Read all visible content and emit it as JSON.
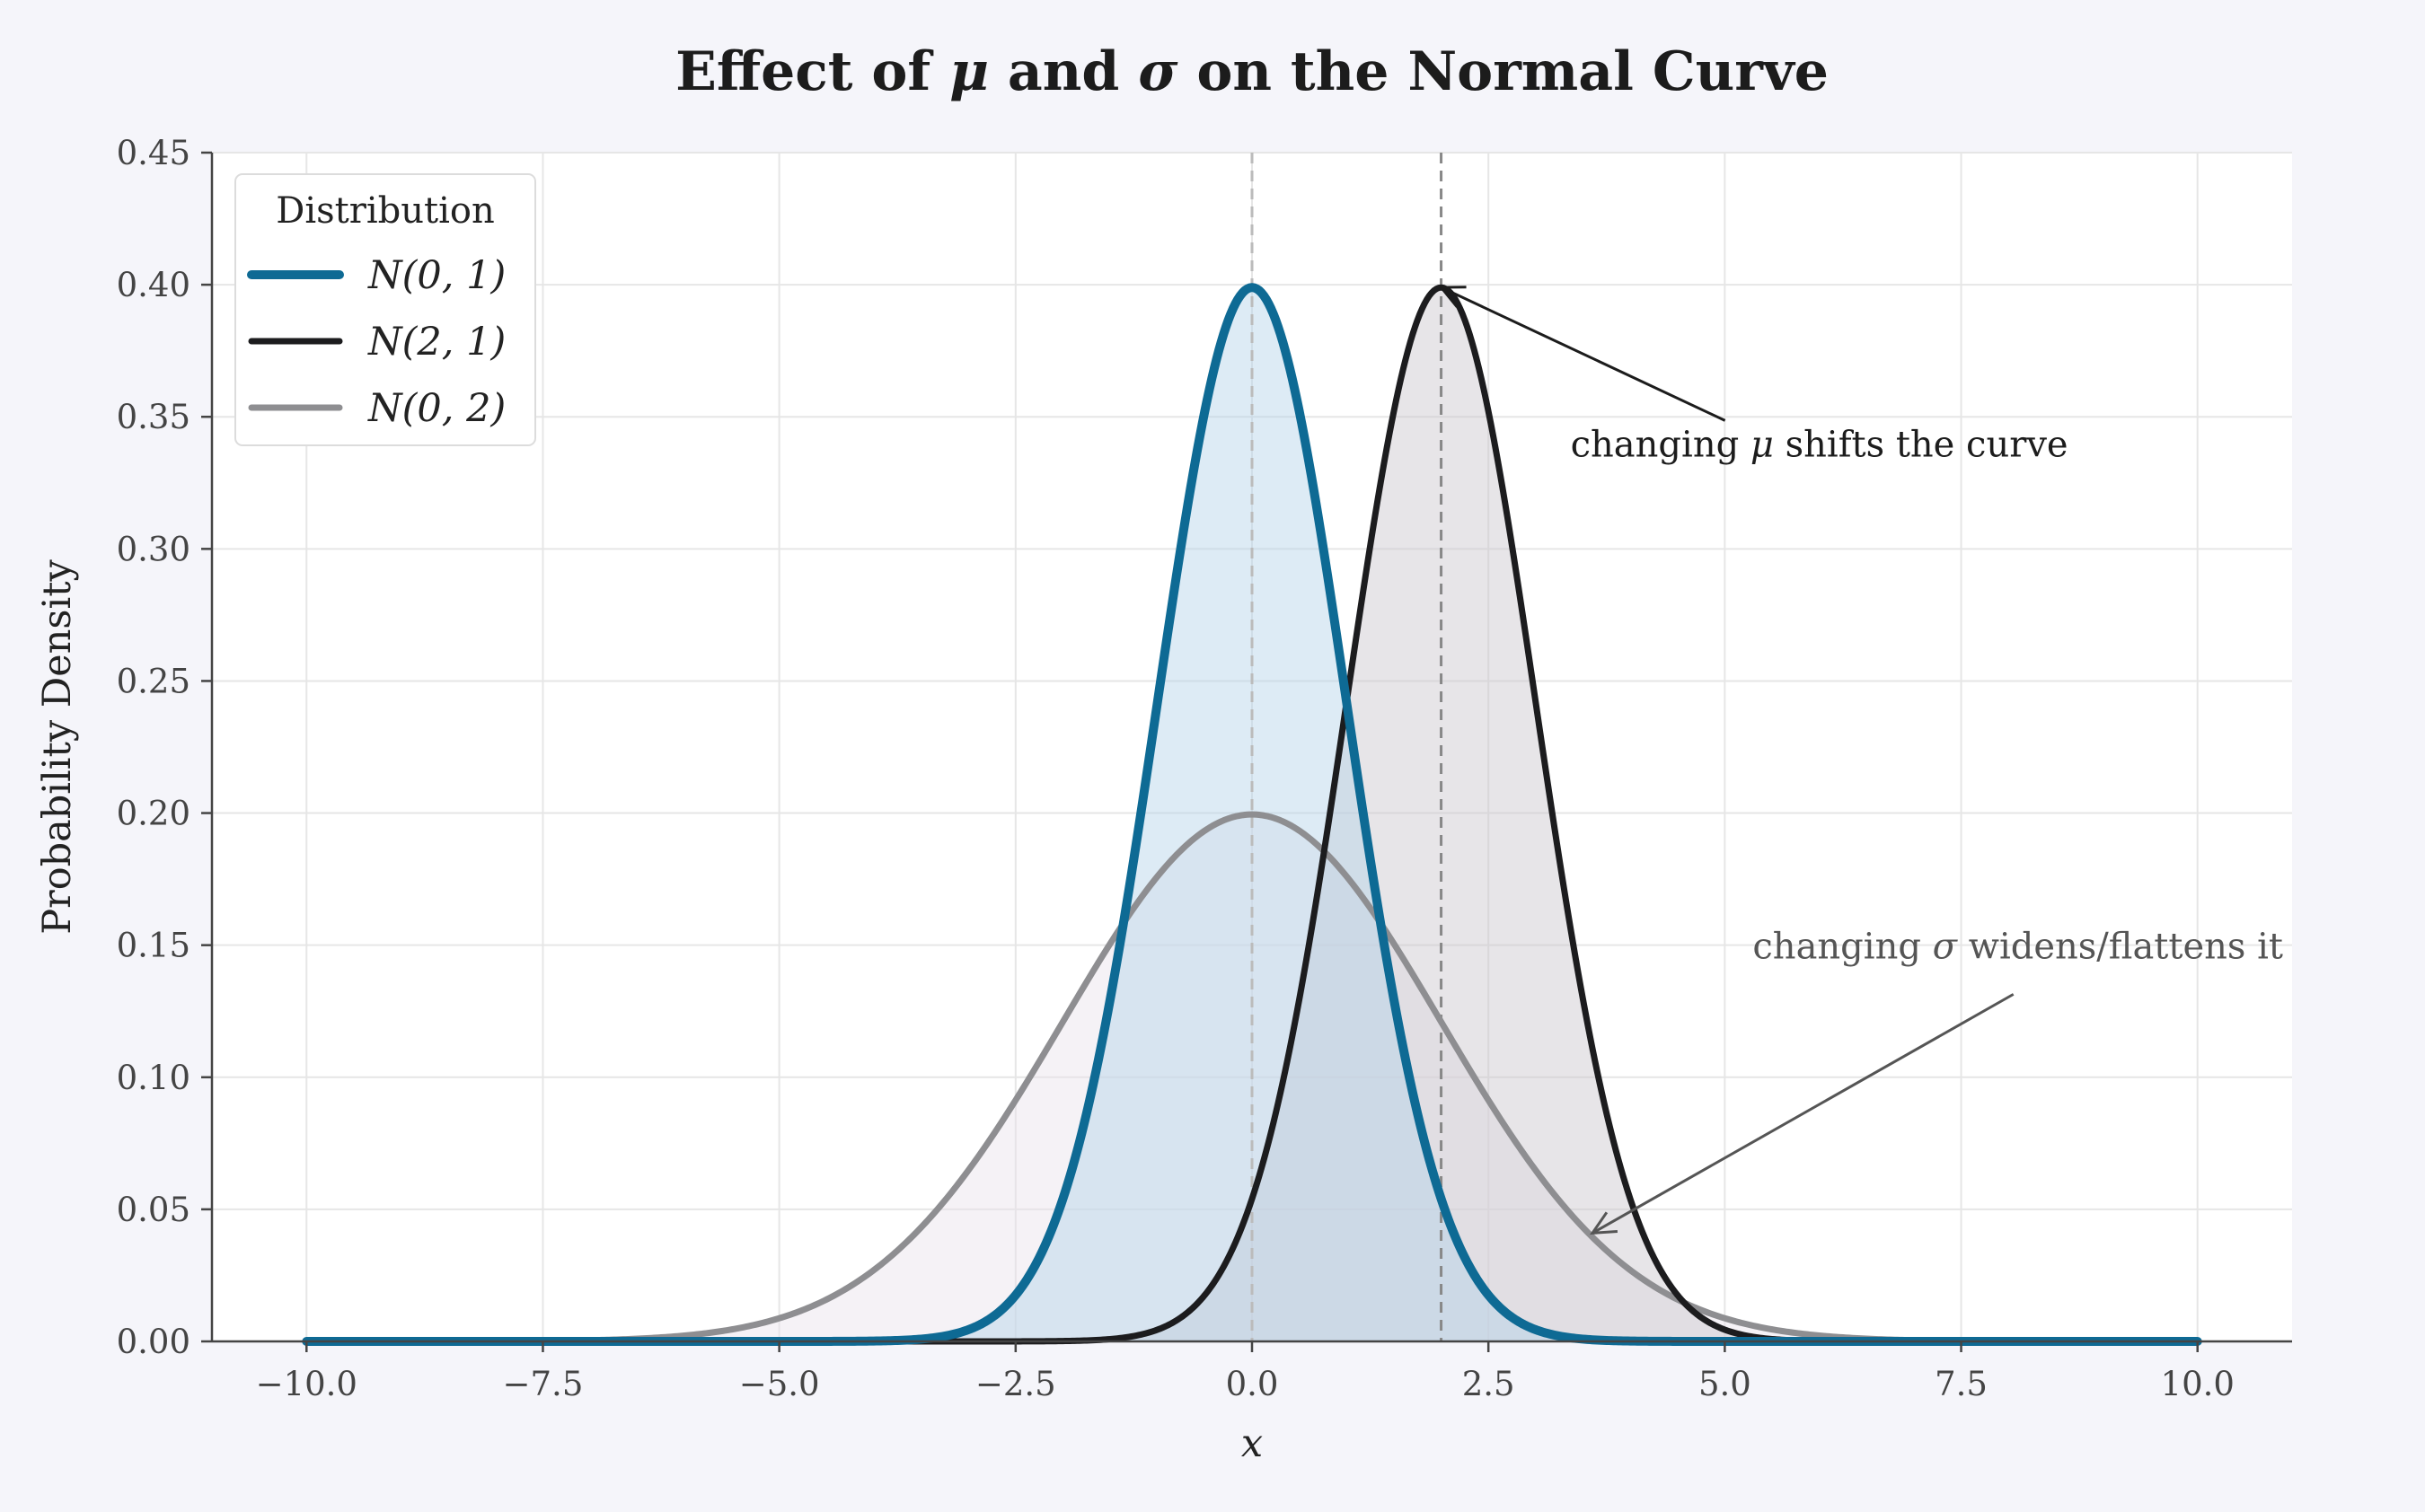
{
  "chart_data": {
    "type": "line",
    "title_parts": [
      {
        "text": "Effect of ",
        "italic": false
      },
      {
        "text": "μ",
        "italic": true
      },
      {
        "text": " and ",
        "italic": false
      },
      {
        "text": "σ",
        "italic": true
      },
      {
        "text": " on the Normal Curve",
        "italic": false
      }
    ],
    "xlabel": "x",
    "ylabel": "Probability Density",
    "xlim": [
      -11,
      11
    ],
    "ylim": [
      0,
      0.45
    ],
    "x_range": [
      -10,
      10
    ],
    "xticks": [
      -10,
      -7.5,
      -5,
      -2.5,
      0,
      2.5,
      5,
      7.5,
      10
    ],
    "xtick_labels": [
      "−10.0",
      "−7.5",
      "−5.0",
      "−2.5",
      "0.0",
      "2.5",
      "5.0",
      "7.5",
      "10.0"
    ],
    "yticks": [
      0,
      0.05,
      0.1,
      0.15,
      0.2,
      0.25,
      0.3,
      0.35,
      0.4,
      0.45
    ],
    "ytick_labels": [
      "0.00",
      "0.05",
      "0.10",
      "0.15",
      "0.20",
      "0.25",
      "0.30",
      "0.35",
      "0.40",
      "0.45"
    ],
    "grid": true,
    "legend": {
      "title": "Distribution",
      "placement": "top-left"
    },
    "series": [
      {
        "name": "N(0, 1)",
        "mu": 0,
        "sigma": 1,
        "color": "#0e6a94",
        "fill": "#b3d3e8",
        "line_weight": "thick"
      },
      {
        "name": "N(2, 1)",
        "mu": 2,
        "sigma": 1,
        "color": "#1c1c1e",
        "fill": "#c9c5cd",
        "line_weight": "medium"
      },
      {
        "name": "N(0, 2)",
        "mu": 0,
        "sigma": 2,
        "color": "#8e8e91",
        "fill": "#e8e2ec",
        "line_weight": "medium"
      }
    ],
    "vlines": [
      {
        "x": 0,
        "color": "#bbbbbb",
        "style": "dashed"
      },
      {
        "x": 2,
        "color": "#888888",
        "style": "dashed"
      }
    ],
    "annotations": [
      {
        "parts": [
          {
            "text": "changing ",
            "italic": false
          },
          {
            "text": "μ",
            "italic": true
          },
          {
            "text": " shifts the curve",
            "italic": false
          }
        ],
        "point": [
          2,
          0.399
        ],
        "text_at": [
          6.0,
          0.335
        ],
        "color": "#1c1c1c"
      },
      {
        "parts": [
          {
            "text": "changing ",
            "italic": false
          },
          {
            "text": "σ",
            "italic": true
          },
          {
            "text": " widens/flattens it",
            "italic": false
          }
        ],
        "point": [
          3.6,
          0.041
        ],
        "text_at": [
          8.1,
          0.145
        ],
        "color": "#555555"
      }
    ]
  }
}
